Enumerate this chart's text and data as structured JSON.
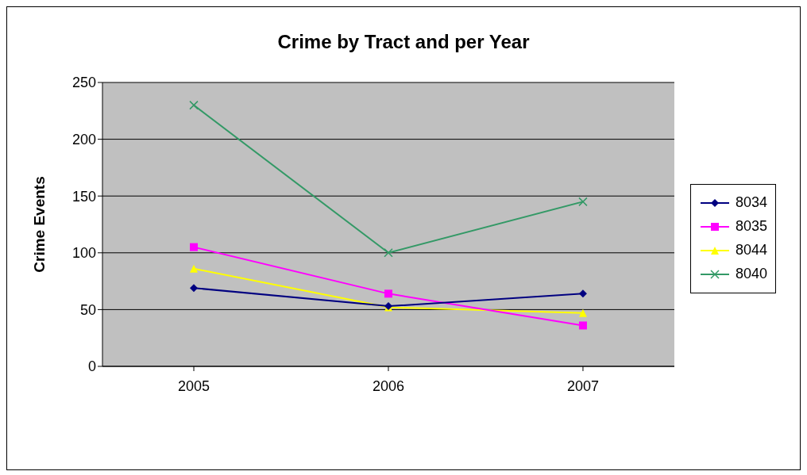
{
  "chart_data": {
    "type": "line",
    "title": "Crime by Tract and per Year",
    "ylabel": "Crime Events",
    "categories": [
      "2005",
      "2006",
      "2007"
    ],
    "series": [
      {
        "name": "8034",
        "color": "#000080",
        "marker": "diamond",
        "values": [
          69,
          53,
          64
        ]
      },
      {
        "name": "8035",
        "color": "#ff00ff",
        "marker": "square",
        "values": [
          105,
          64,
          36
        ]
      },
      {
        "name": "8044",
        "color": "#ffff00",
        "marker": "triangle",
        "values": [
          86,
          52,
          47
        ]
      },
      {
        "name": "8040",
        "color": "#339966",
        "marker": "cross",
        "values": [
          230,
          100,
          145
        ]
      }
    ],
    "ylim": [
      0,
      250
    ],
    "yticks": [
      0,
      50,
      100,
      150,
      200,
      250
    ],
    "grid": "y",
    "legend": "right"
  }
}
